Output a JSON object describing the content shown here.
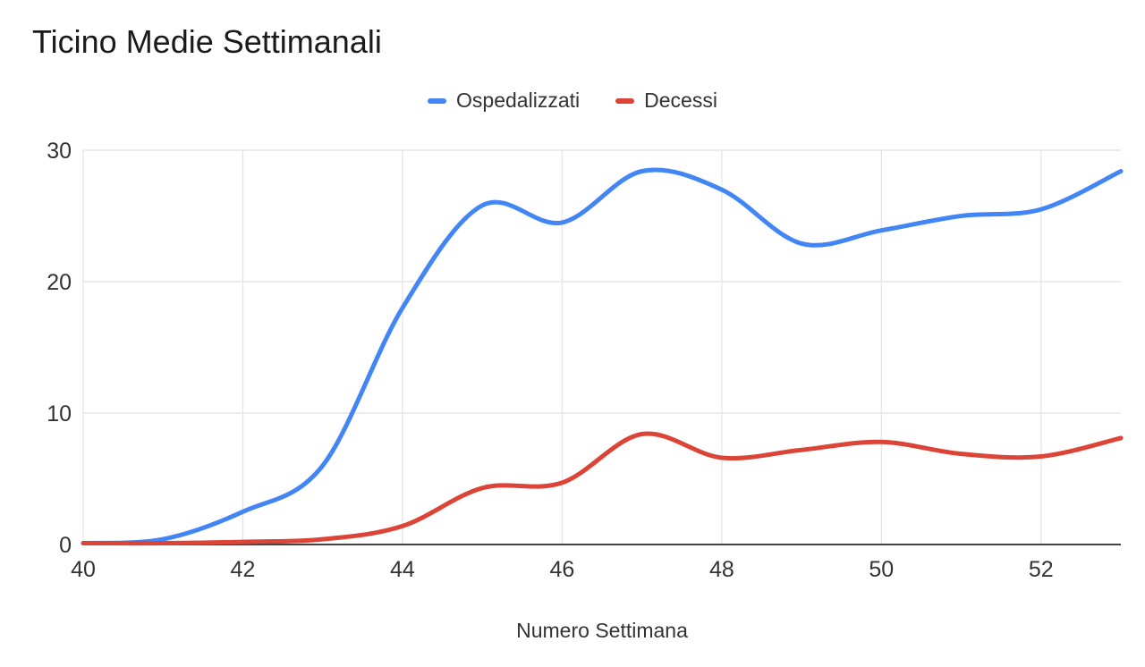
{
  "chart": {
    "title": "Ticino Medie Settimanali",
    "xlabel": "Numero Settimana"
  },
  "chart_data": {
    "type": "line",
    "title": "Ticino Medie Settimanali",
    "xlabel": "Numero Settimana",
    "ylabel": "",
    "x": [
      40,
      41,
      42,
      43,
      44,
      45,
      46,
      47,
      48,
      49,
      50,
      51,
      52,
      53
    ],
    "series": [
      {
        "name": "Ospedalizzati",
        "color": "#4285f4",
        "values": [
          0.1,
          0.4,
          2.5,
          6.0,
          18.0,
          25.8,
          24.5,
          28.4,
          27.0,
          22.9,
          23.9,
          25.0,
          25.5,
          28.4
        ]
      },
      {
        "name": "Decessi",
        "color": "#db4437",
        "values": [
          0.0,
          0.1,
          0.2,
          0.4,
          1.4,
          4.3,
          4.7,
          8.4,
          6.6,
          7.2,
          7.8,
          6.9,
          6.7,
          8.1
        ]
      }
    ],
    "x_ticks": [
      40,
      42,
      44,
      46,
      48,
      50,
      52
    ],
    "y_ticks": [
      0,
      10,
      20,
      30
    ],
    "xlim": [
      40,
      53
    ],
    "ylim": [
      0,
      30
    ],
    "grid": true,
    "smooth": true,
    "legend_position": "top",
    "colors": {
      "gridline": "#e6e6e6",
      "baseline": "#424242",
      "tick_text": "#333333"
    }
  }
}
